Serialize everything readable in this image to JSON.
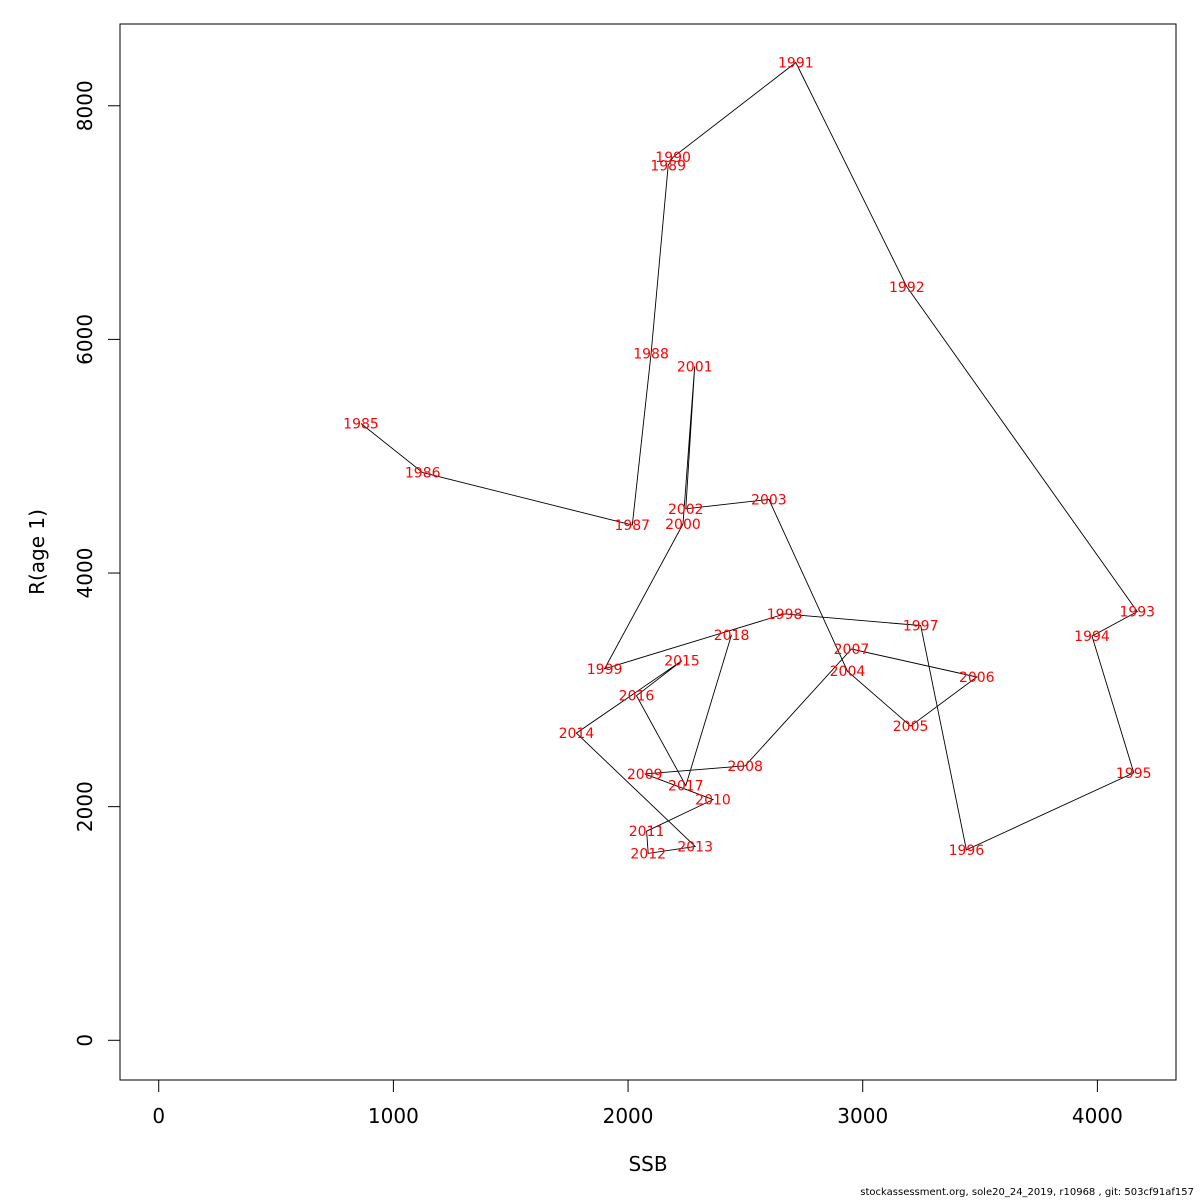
{
  "chart_data": {
    "type": "line",
    "title": "",
    "xlabel": "SSB",
    "ylabel": "R(age 1)",
    "xlim": [
      -165,
      4335
    ],
    "ylim": [
      -340,
      8700
    ],
    "x_ticks": [
      0,
      1000,
      2000,
      3000,
      4000
    ],
    "x_tick_labels": [
      "0",
      "1000",
      "2000",
      "3000",
      "4000"
    ],
    "y_ticks": [
      0,
      2000,
      4000,
      6000,
      8000
    ],
    "y_tick_labels": [
      "0",
      "2000",
      "4000",
      "6000",
      "8000"
    ],
    "grid": false,
    "line_color": "#000000",
    "label_color": "#ff0000",
    "points": [
      {
        "year": "1985",
        "x": 862,
        "y": 5280
      },
      {
        "year": "1986",
        "x": 1125,
        "y": 4860
      },
      {
        "year": "1987",
        "x": 2018,
        "y": 4410
      },
      {
        "year": "1988",
        "x": 2098,
        "y": 5880
      },
      {
        "year": "1989",
        "x": 2171,
        "y": 7490
      },
      {
        "year": "1990",
        "x": 2192,
        "y": 7560
      },
      {
        "year": "1991",
        "x": 2715,
        "y": 8370
      },
      {
        "year": "1992",
        "x": 3188,
        "y": 6450
      },
      {
        "year": "1993",
        "x": 4170,
        "y": 3670
      },
      {
        "year": "1994",
        "x": 3977,
        "y": 3460
      },
      {
        "year": "1995",
        "x": 4155,
        "y": 2290
      },
      {
        "year": "1996",
        "x": 3442,
        "y": 1630
      },
      {
        "year": "1997",
        "x": 3247,
        "y": 3550
      },
      {
        "year": "1998",
        "x": 2667,
        "y": 3650
      },
      {
        "year": "1999",
        "x": 1900,
        "y": 3180
      },
      {
        "year": "2000",
        "x": 2234,
        "y": 4420
      },
      {
        "year": "2001",
        "x": 2284,
        "y": 5770
      },
      {
        "year": "2002",
        "x": 2246,
        "y": 4550
      },
      {
        "year": "2003",
        "x": 2600,
        "y": 4630
      },
      {
        "year": "2004",
        "x": 2935,
        "y": 3160
      },
      {
        "year": "2005",
        "x": 3204,
        "y": 2690
      },
      {
        "year": "2006",
        "x": 3486,
        "y": 3110
      },
      {
        "year": "2007",
        "x": 2952,
        "y": 3350
      },
      {
        "year": "2008",
        "x": 2499,
        "y": 2350
      },
      {
        "year": "2009",
        "x": 2071,
        "y": 2280
      },
      {
        "year": "2010",
        "x": 2362,
        "y": 2060
      },
      {
        "year": "2011",
        "x": 2079,
        "y": 1790
      },
      {
        "year": "2012",
        "x": 2086,
        "y": 1600
      },
      {
        "year": "2013",
        "x": 2286,
        "y": 1660
      },
      {
        "year": "2014",
        "x": 1780,
        "y": 2630
      },
      {
        "year": "2015",
        "x": 2230,
        "y": 3250
      },
      {
        "year": "2016",
        "x": 2036,
        "y": 2950
      },
      {
        "year": "2017",
        "x": 2246,
        "y": 2180
      },
      {
        "year": "2018",
        "x": 2441,
        "y": 3470
      }
    ]
  },
  "footer": "stockassessment.org, sole20_24_2019, r10968 , git: 503cf91af157"
}
